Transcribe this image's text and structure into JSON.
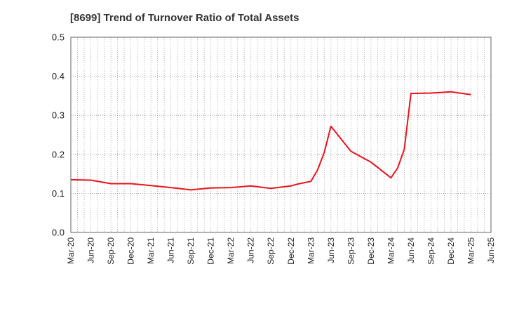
{
  "chart_data": {
    "type": "line",
    "title": "[8699]  Trend of Turnover Ratio of Total Assets",
    "xlabel": "",
    "ylabel": "",
    "ylim": [
      0,
      0.5
    ],
    "yticks": [
      "0.0",
      "0.1",
      "0.2",
      "0.3",
      "0.4",
      "0.5"
    ],
    "xticks": [
      "Mar-20",
      "Jun-20",
      "Sep-20",
      "Dec-20",
      "Mar-21",
      "Jun-21",
      "Sep-21",
      "Dec-21",
      "Mar-22",
      "Jun-22",
      "Sep-22",
      "Dec-22",
      "Mar-23",
      "Jun-23",
      "Sep-23",
      "Dec-23",
      "Mar-24",
      "Jun-24",
      "Sep-24",
      "Dec-24",
      "Mar-25",
      "Jun-25"
    ],
    "grid": true,
    "line_color": "#e8141e",
    "series": [
      {
        "x": [
          "Mar-20",
          "Jun-20",
          "Sep-20",
          "Dec-20",
          "Mar-21",
          "Jun-21",
          "Sep-21",
          "Dec-21",
          "Mar-22",
          "Jun-22",
          "Sep-22",
          "Dec-22",
          "Jan-23",
          "Mar-23",
          "Apr-23",
          "May-23",
          "Jun-23",
          "Sep-23",
          "Dec-23",
          "Mar-24",
          "Apr-24",
          "May-24",
          "Jun-24",
          "Sep-24",
          "Dec-24",
          "Mar-25"
        ],
        "values": [
          0.135,
          0.134,
          0.125,
          0.125,
          0.12,
          0.115,
          0.109,
          0.114,
          0.115,
          0.119,
          0.113,
          0.119,
          0.124,
          0.131,
          0.16,
          0.205,
          0.272,
          0.208,
          0.18,
          0.14,
          0.165,
          0.213,
          0.356,
          0.357,
          0.36,
          0.353
        ]
      }
    ]
  }
}
